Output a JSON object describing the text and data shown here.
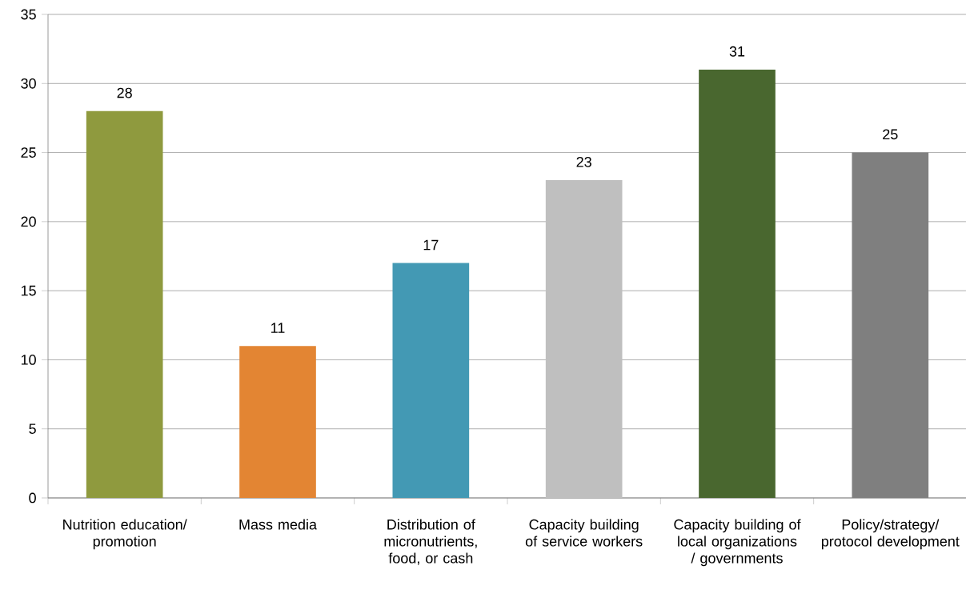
{
  "chart_data": {
    "type": "bar",
    "categories": [
      "Nutrition education/ promotion",
      "Mass media",
      "Distribution of micronutrients, food, or cash",
      "Capacity building of service workers",
      "Capacity building of local organizations / governments",
      "Policy/strategy/ protocol development"
    ],
    "values": [
      28,
      11,
      17,
      23,
      31,
      25
    ],
    "colors": [
      "#8f9a3e",
      "#e38533",
      "#4399b4",
      "#bfbfbf",
      "#49672f",
      "#7f7f7f"
    ],
    "ylim": [
      0,
      35
    ],
    "yticks": [
      0,
      5,
      10,
      15,
      20,
      25,
      30,
      35
    ],
    "grid": "y",
    "data_labels": true
  }
}
